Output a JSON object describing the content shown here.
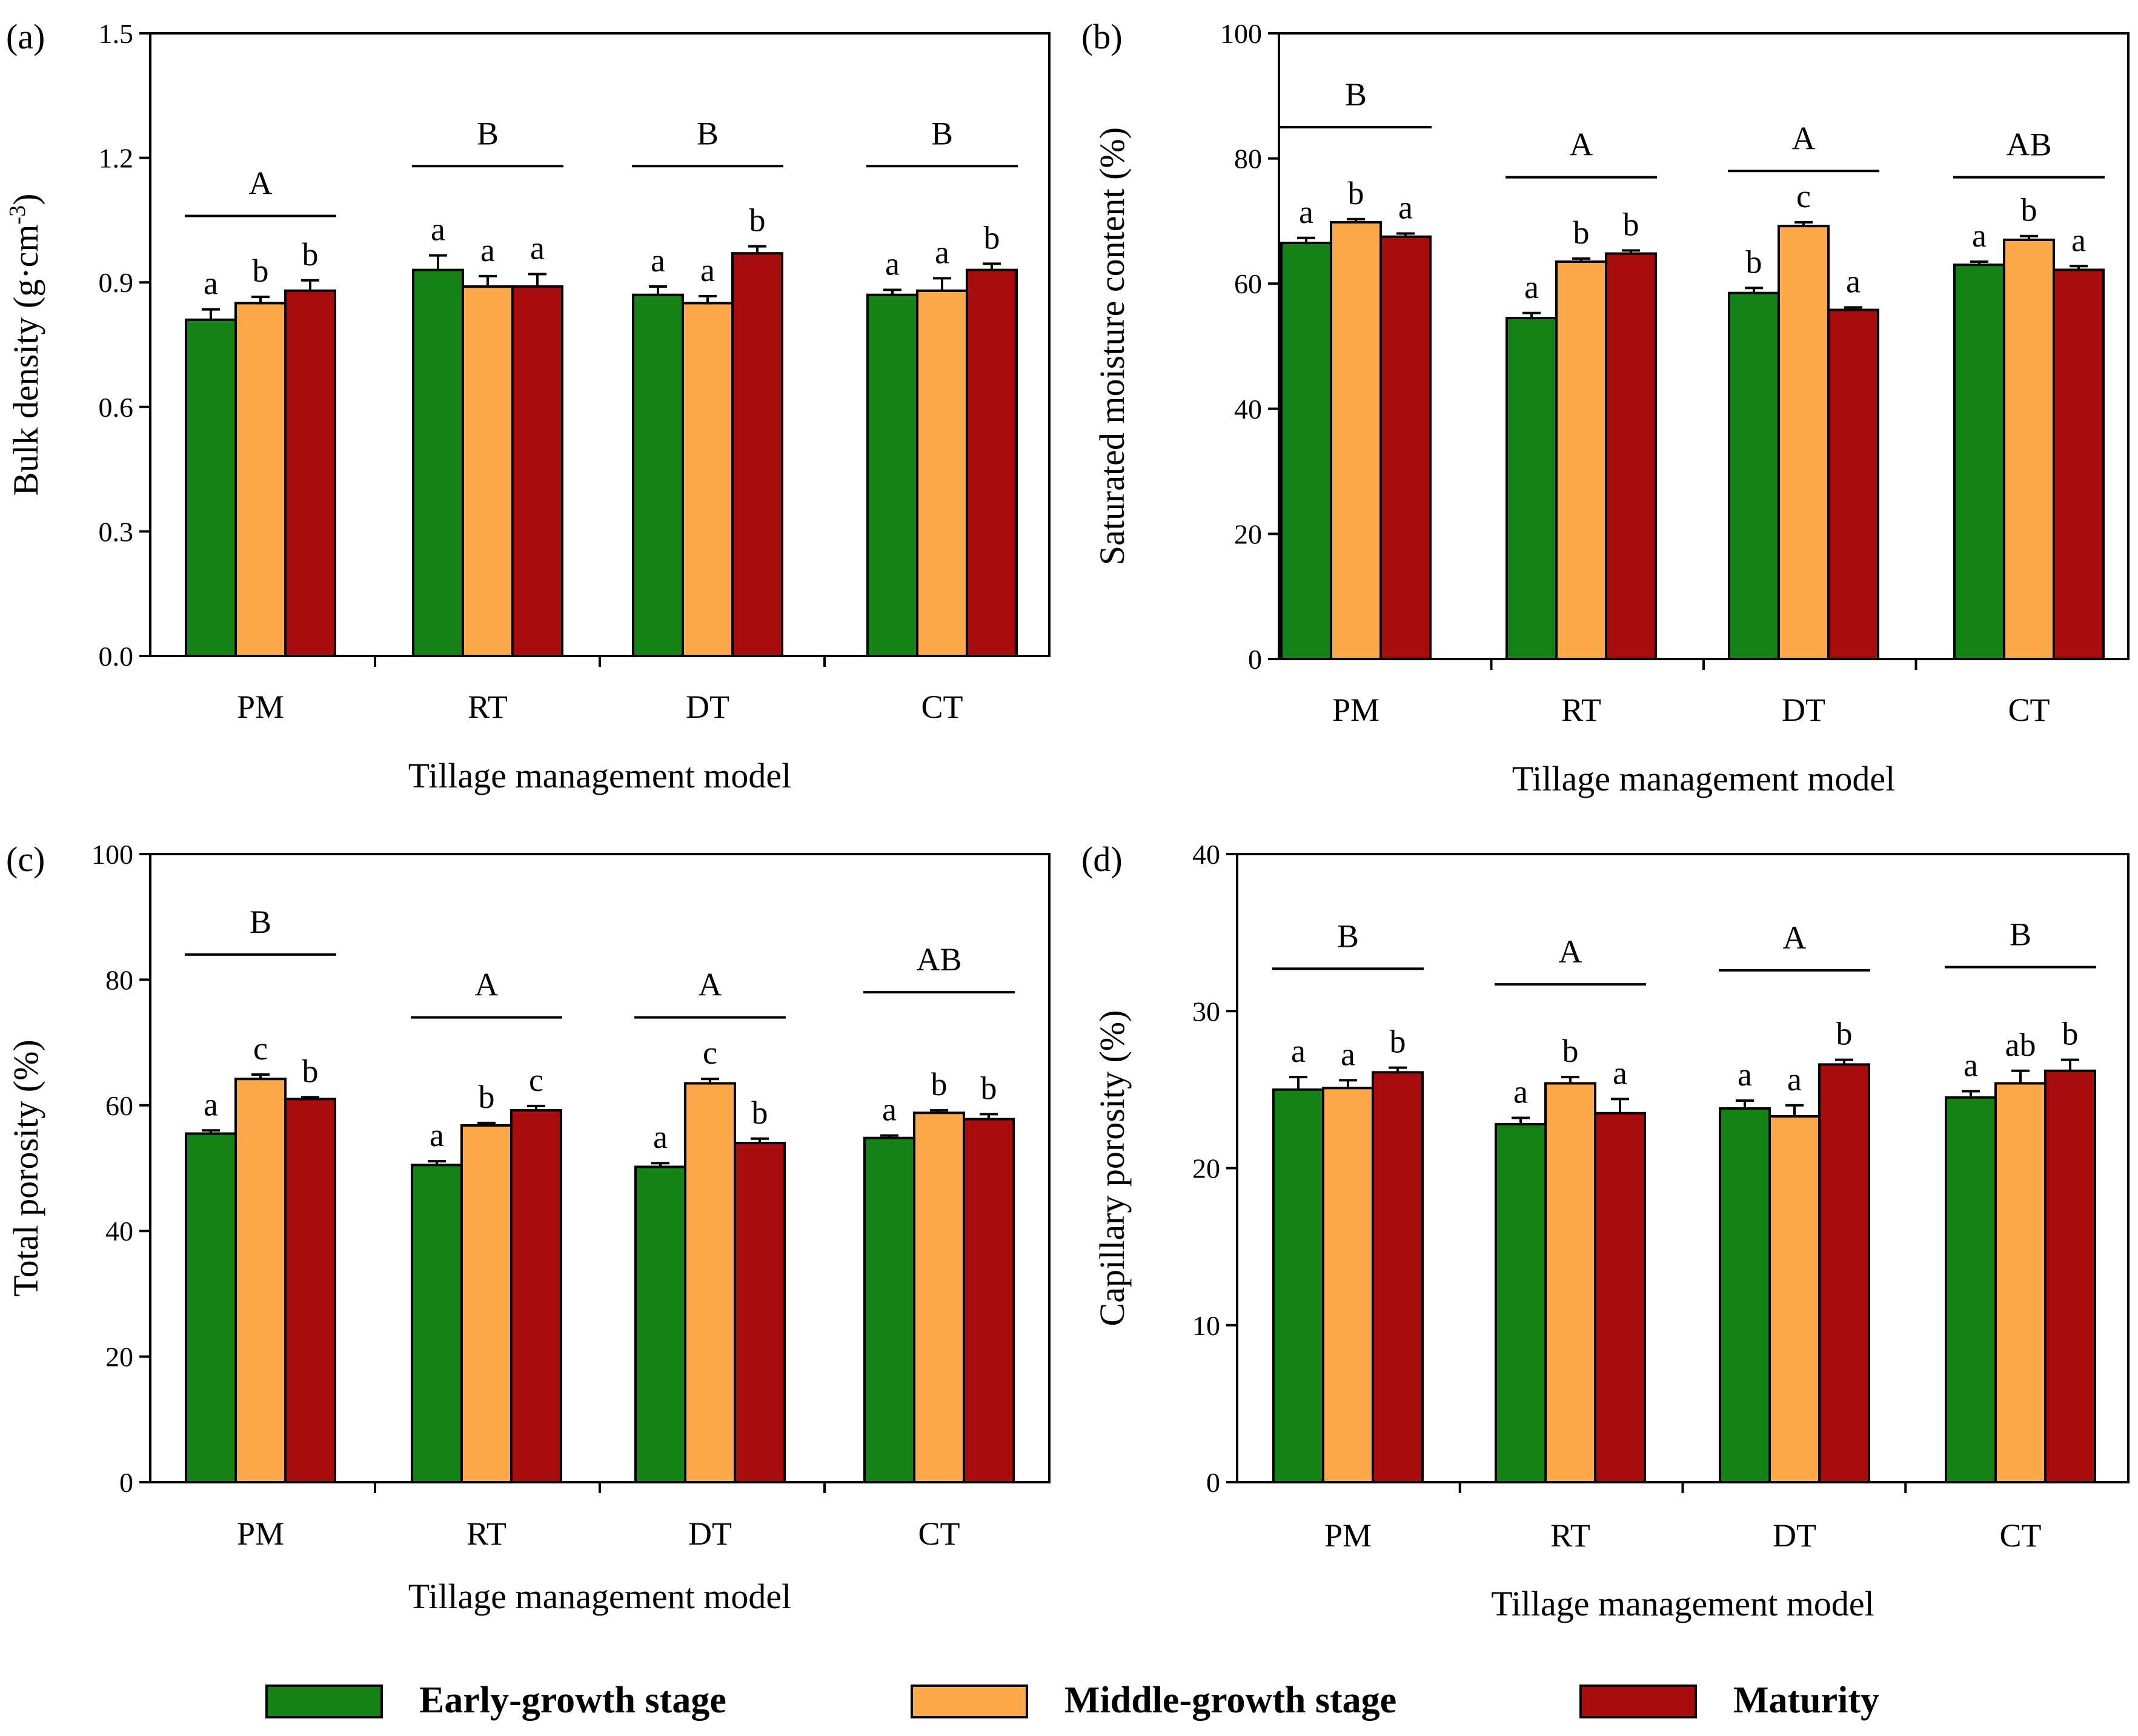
{
  "series_names": [
    "Early-growth stage",
    "Middle-growth stage",
    "Maturity"
  ],
  "series_colors": [
    "#158217",
    "#fba94a",
    "#a90c0c"
  ],
  "legend": {
    "items": [
      {
        "label": "Early-growth stage",
        "color": "#158217",
        "icon": "green-swatch"
      },
      {
        "label": "Middle-growth stage",
        "color": "#fba94a",
        "icon": "orange-swatch"
      },
      {
        "label": "Maturity",
        "color": "#a90c0c",
        "icon": "dark-red-swatch"
      }
    ]
  },
  "chart_data": [
    {
      "type": "bar",
      "panel": "(a)",
      "ylabel_main": "Bulk density (g·cm",
      "ylabel_sup": "-3",
      "ylabel_end": ")",
      "xlabel": "Tillage management model",
      "categories": [
        "PM",
        "RT",
        "DT",
        "CT"
      ],
      "ylim": [
        0,
        1.5
      ],
      "yticks": [
        "0.0",
        "0.3",
        "0.6",
        "0.9",
        "1.2",
        "1.5"
      ],
      "series": [
        {
          "name": "Early-growth stage",
          "values": [
            0.81,
            0.93,
            0.87,
            0.87
          ],
          "errors": [
            0.025,
            0.035,
            0.02,
            0.012
          ],
          "letters": [
            "a",
            "a",
            "a",
            "a"
          ]
        },
        {
          "name": "Middle-growth stage",
          "values": [
            0.85,
            0.89,
            0.85,
            0.88
          ],
          "errors": [
            0.015,
            0.025,
            0.017,
            0.03
          ],
          "letters": [
            "b",
            "a",
            "a",
            "a"
          ]
        },
        {
          "name": "Maturity",
          "values": [
            0.88,
            0.89,
            0.97,
            0.93
          ],
          "errors": [
            0.025,
            0.03,
            0.017,
            0.015
          ],
          "letters": [
            "b",
            "a",
            "b",
            "b"
          ]
        }
      ],
      "group_letters": [
        "A",
        "B",
        "B",
        "B"
      ],
      "group_line_y": [
        1.06,
        1.18,
        1.18,
        1.18
      ]
    },
    {
      "type": "bar",
      "panel": "(b)",
      "ylabel_main": "Saturated moisture content (%)",
      "xlabel": "Tillage management model",
      "categories": [
        "PM",
        "RT",
        "DT",
        "CT"
      ],
      "ylim": [
        0,
        100
      ],
      "yticks": [
        "0",
        "20",
        "40",
        "60",
        "80",
        "100"
      ],
      "series": [
        {
          "name": "Early-growth stage",
          "values": [
            66.5,
            54.5,
            58.5,
            63
          ],
          "errors": [
            0.8,
            0.8,
            0.8,
            0.5
          ],
          "letters": [
            "a",
            "a",
            "b",
            "a"
          ]
        },
        {
          "name": "Middle-growth stage",
          "values": [
            69.8,
            63.5,
            69.2,
            67
          ],
          "errors": [
            0.5,
            0.5,
            0.6,
            0.6
          ],
          "letters": [
            "b",
            "b",
            "c",
            "b"
          ]
        },
        {
          "name": "Maturity",
          "values": [
            67.5,
            64.8,
            55.8,
            62.2
          ],
          "errors": [
            0.5,
            0.5,
            0.4,
            0.6
          ],
          "letters": [
            "a",
            "b",
            "a",
            "a"
          ]
        }
      ],
      "group_letters": [
        "B",
        "A",
        "A",
        "AB"
      ],
      "group_line_y": [
        85,
        77,
        78,
        77
      ]
    },
    {
      "type": "bar",
      "panel": "(c)",
      "ylabel_main": "Total porosity (%)",
      "xlabel": "Tillage management model",
      "categories": [
        "PM",
        "RT",
        "DT",
        "CT"
      ],
      "ylim": [
        0,
        100
      ],
      "yticks": [
        "0",
        "20",
        "40",
        "60",
        "80",
        "100"
      ],
      "series": [
        {
          "name": "Early-growth stage",
          "values": [
            55.5,
            50.5,
            50.2,
            54.8
          ],
          "errors": [
            0.5,
            0.6,
            0.6,
            0.4
          ],
          "letters": [
            "a",
            "a",
            "a",
            "a"
          ]
        },
        {
          "name": "Middle-growth stage",
          "values": [
            64.2,
            56.8,
            63.5,
            58.8
          ],
          "errors": [
            0.7,
            0.4,
            0.7,
            0.4
          ],
          "letters": [
            "c",
            "b",
            "c",
            "b"
          ]
        },
        {
          "name": "Maturity",
          "values": [
            61,
            59.2,
            54,
            57.8
          ],
          "errors": [
            0.3,
            0.7,
            0.7,
            0.8
          ],
          "letters": [
            "b",
            "c",
            "b",
            "b"
          ]
        }
      ],
      "group_letters": [
        "B",
        "A",
        "A",
        "AB"
      ],
      "group_line_y": [
        84,
        74,
        74,
        78
      ]
    },
    {
      "type": "bar",
      "panel": "(d)",
      "ylabel_main": "Capillary porosity  (%)",
      "xlabel": "Tillage management model",
      "categories": [
        "PM",
        "RT",
        "DT",
        "CT"
      ],
      "ylim": [
        0,
        40
      ],
      "yticks": [
        "0",
        "10",
        "20",
        "30",
        "40"
      ],
      "series": [
        {
          "name": "Early-growth stage",
          "values": [
            25,
            22.8,
            23.8,
            24.5
          ],
          "errors": [
            0.8,
            0.4,
            0.5,
            0.4
          ],
          "letters": [
            "a",
            "a",
            "a",
            "a"
          ]
        },
        {
          "name": "Middle-growth stage",
          "values": [
            25.1,
            25.4,
            23.3,
            25.4
          ],
          "errors": [
            0.5,
            0.4,
            0.7,
            0.8
          ],
          "letters": [
            "a",
            "b",
            "a",
            "ab"
          ]
        },
        {
          "name": "Maturity",
          "values": [
            26.1,
            23.5,
            26.6,
            26.2
          ],
          "errors": [
            0.3,
            0.9,
            0.3,
            0.7
          ],
          "letters": [
            "b",
            "a",
            "b",
            "b"
          ]
        }
      ],
      "group_letters": [
        "B",
        "A",
        "A",
        "B"
      ],
      "group_line_y": [
        32.7,
        31.7,
        32.6,
        32.8
      ]
    }
  ]
}
